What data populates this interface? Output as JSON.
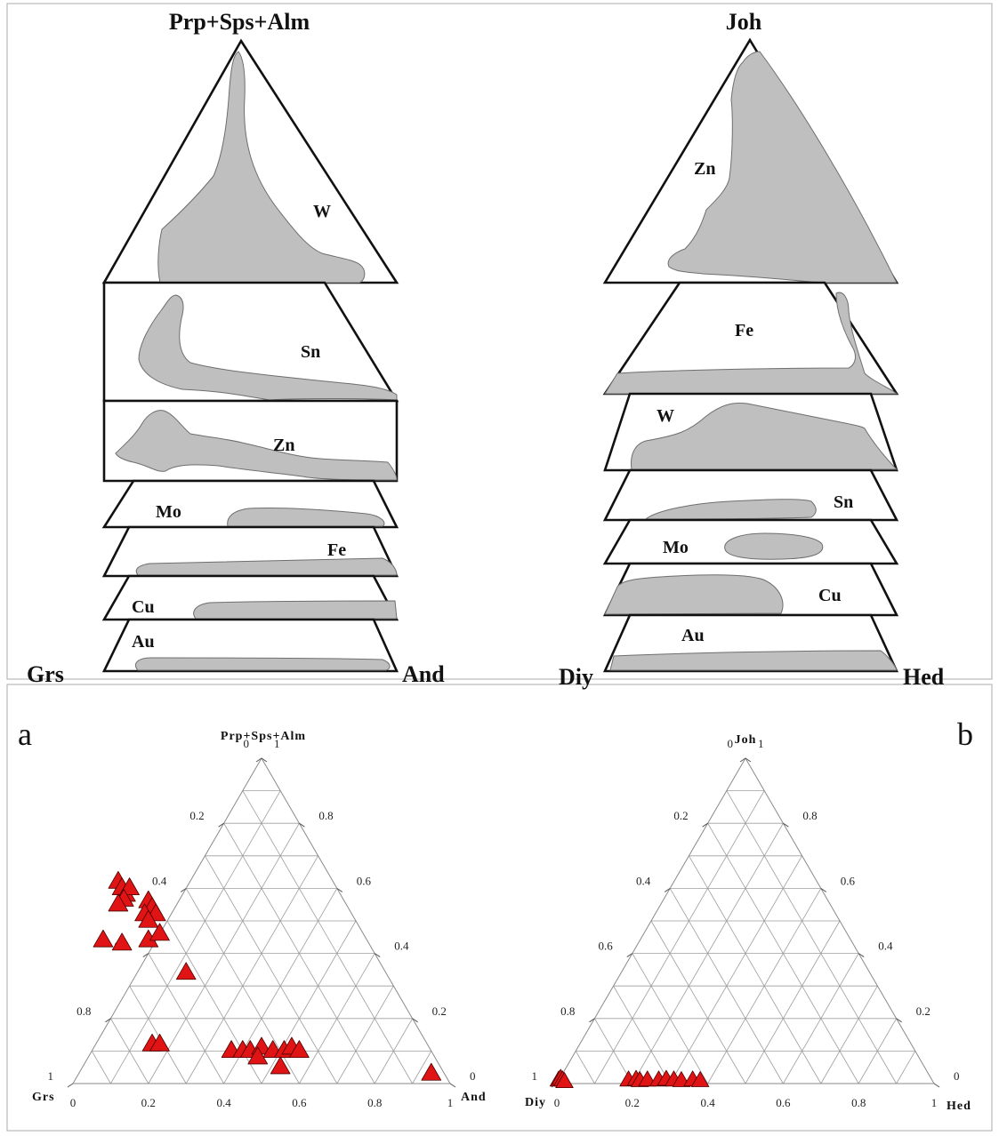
{
  "schematic": {
    "garnet": {
      "apex": "Prp+Sps+Alm",
      "left": "Grs",
      "right": "And",
      "zones": [
        "W",
        "Sn",
        "Zn",
        "Mo",
        "Fe",
        "Cu",
        "Au"
      ]
    },
    "pyroxene": {
      "apex": "Joh",
      "left": "Diy",
      "right": "Hed",
      "zones": [
        "Zn",
        "Fe",
        "W",
        "Sn",
        "Mo",
        "Cu",
        "Au"
      ]
    }
  },
  "ternary": {
    "a": {
      "letter": "a",
      "apex": "Prp+Sps+Alm",
      "left": "Grs",
      "right": "And",
      "bottom_ticks": [
        "0",
        "0.2",
        "0.4",
        "0.6",
        "0.8",
        "1"
      ],
      "left_ticks": [
        "1",
        "0.8",
        "0.6",
        "0.4",
        "0.2",
        "0"
      ],
      "right_ticks": [
        "0",
        "0.2",
        "0.4",
        "0.6",
        "0.8",
        "1"
      ],
      "samples": [
        [
          0.12,
          0.62
        ],
        [
          0.13,
          0.6
        ],
        [
          0.14,
          0.58
        ],
        [
          0.15,
          0.6
        ],
        [
          0.135,
          0.565
        ],
        [
          0.12,
          0.55
        ],
        [
          0.2,
          0.56
        ],
        [
          0.21,
          0.54
        ],
        [
          0.22,
          0.52
        ],
        [
          0.19,
          0.52
        ],
        [
          0.2,
          0.5
        ],
        [
          0.08,
          0.44
        ],
        [
          0.13,
          0.43
        ],
        [
          0.2,
          0.44
        ],
        [
          0.23,
          0.46
        ],
        [
          0.3,
          0.34
        ],
        [
          0.21,
          0.12
        ],
        [
          0.23,
          0.12
        ],
        [
          0.42,
          0.1
        ],
        [
          0.45,
          0.1
        ],
        [
          0.47,
          0.1
        ],
        [
          0.5,
          0.11
        ],
        [
          0.53,
          0.1
        ],
        [
          0.56,
          0.1
        ],
        [
          0.58,
          0.11
        ],
        [
          0.6,
          0.1
        ],
        [
          0.55,
          0.05
        ],
        [
          0.49,
          0.08
        ],
        [
          0.95,
          0.03
        ]
      ]
    },
    "b": {
      "letter": "b",
      "apex": "Joh",
      "left": "Diy",
      "right": "Hed",
      "bottom_ticks": [
        "0",
        "0.2",
        "0.4",
        "0.6",
        "0.8",
        "1"
      ],
      "left_ticks": [
        "1",
        "0.8",
        "0.6",
        "0.4",
        "0.2",
        "0"
      ],
      "right_ticks": [
        "0",
        "0.2",
        "0.4",
        "0.6",
        "0.8",
        "1"
      ],
      "samples": [
        [
          0.005,
          0.01
        ],
        [
          0.01,
          0.015
        ],
        [
          0.015,
          0.01
        ],
        [
          0.02,
          0.005
        ],
        [
          0.19,
          0.01
        ],
        [
          0.21,
          0.012
        ],
        [
          0.22,
          0.008
        ],
        [
          0.24,
          0.01
        ],
        [
          0.27,
          0.01
        ],
        [
          0.29,
          0.012
        ],
        [
          0.31,
          0.01
        ],
        [
          0.33,
          0.008
        ],
        [
          0.36,
          0.01
        ],
        [
          0.38,
          0.008
        ]
      ]
    }
  },
  "colors": {
    "field": "#bfbfbf",
    "sample": "#e01414"
  }
}
